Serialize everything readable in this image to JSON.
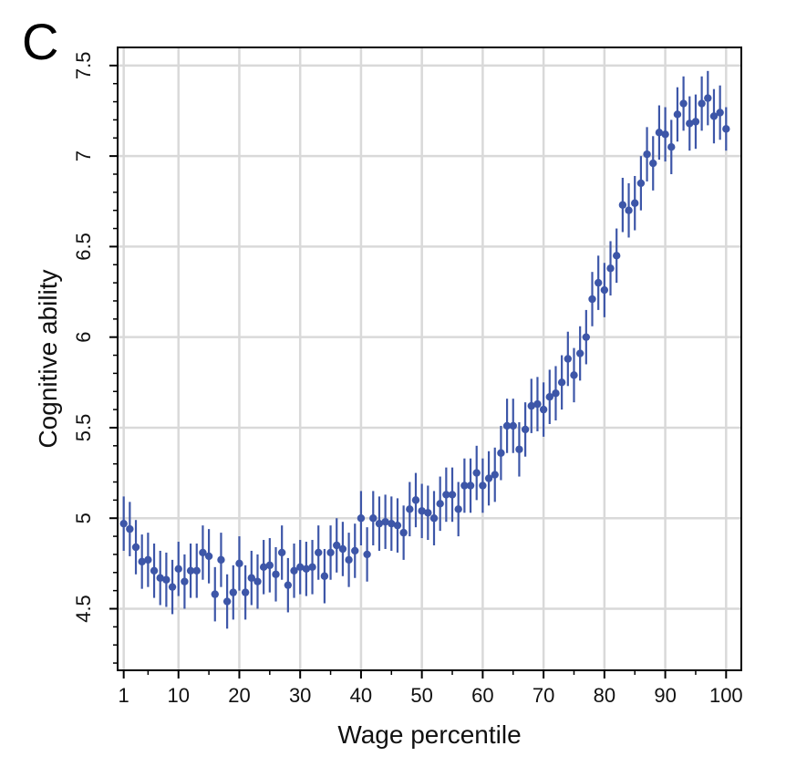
{
  "panel_label": "C",
  "colors": {
    "marker": "#3d56a8",
    "grid": "#d9d9d9",
    "axis": "#000000"
  },
  "chart_data": {
    "type": "scatter",
    "title": "",
    "xlabel": "Wage percentile",
    "ylabel": "Cognitive ability",
    "xlim": [
      0,
      102.5
    ],
    "ylim": [
      4.16,
      7.6
    ],
    "xticks": [
      1,
      10,
      20,
      30,
      40,
      50,
      60,
      70,
      80,
      90,
      100
    ],
    "xtick_labels": [
      "1",
      "10",
      "20",
      "30",
      "40",
      "50",
      "60",
      "70",
      "80",
      "90",
      "100"
    ],
    "yticks": [
      4.5,
      5,
      5.5,
      6,
      6.5,
      7,
      7.5
    ],
    "ytick_labels": [
      "4.5",
      "5",
      "5.5",
      "6",
      "6.5",
      "7",
      "7.5"
    ],
    "grid": true,
    "legend": "none",
    "series": [
      {
        "x": [
          1,
          2,
          3,
          4,
          5,
          6,
          7,
          8,
          9,
          10,
          11,
          12,
          13,
          14,
          15,
          16,
          17,
          18,
          19,
          20,
          21,
          22,
          23,
          24,
          25,
          26,
          27,
          28,
          29,
          30,
          31,
          32,
          33,
          34,
          35,
          36,
          37,
          38,
          39,
          40,
          41,
          42,
          43,
          44,
          45,
          46,
          47,
          48,
          49,
          50,
          51,
          52,
          53,
          54,
          55,
          56,
          57,
          58,
          59,
          60,
          61,
          62,
          63,
          64,
          65,
          66,
          67,
          68,
          69,
          70,
          71,
          72,
          73,
          74,
          75,
          76,
          77,
          78,
          79,
          80,
          81,
          82,
          83,
          84,
          85,
          86,
          87,
          88,
          89,
          90,
          91,
          92,
          93,
          94,
          95,
          96,
          97,
          98,
          99,
          100
        ],
        "y": [
          4.97,
          4.94,
          4.84,
          4.76,
          4.77,
          4.71,
          4.67,
          4.66,
          4.62,
          4.72,
          4.65,
          4.71,
          4.71,
          4.81,
          4.79,
          4.58,
          4.77,
          4.54,
          4.59,
          4.75,
          4.59,
          4.67,
          4.65,
          4.73,
          4.74,
          4.69,
          4.81,
          4.63,
          4.71,
          4.73,
          4.72,
          4.73,
          4.81,
          4.68,
          4.81,
          4.85,
          4.83,
          4.77,
          4.82,
          5.0,
          4.8,
          5.0,
          4.97,
          4.98,
          4.97,
          4.96,
          4.92,
          5.05,
          5.1,
          5.04,
          5.03,
          5.0,
          5.08,
          5.13,
          5.13,
          5.05,
          5.18,
          5.18,
          5.25,
          5.18,
          5.22,
          5.24,
          5.36,
          5.51,
          5.51,
          5.38,
          5.49,
          5.62,
          5.63,
          5.6,
          5.67,
          5.69,
          5.75,
          5.88,
          5.79,
          5.91,
          6.0,
          6.21,
          6.3,
          6.26,
          6.38,
          6.45,
          6.73,
          6.7,
          6.74,
          6.85,
          7.01,
          6.96,
          7.13,
          7.12,
          7.05,
          7.23,
          7.29,
          7.18,
          7.19,
          7.29,
          7.32,
          7.22,
          7.24,
          7.15
        ],
        "err": [
          0.15,
          0.15,
          0.15,
          0.15,
          0.15,
          0.15,
          0.15,
          0.15,
          0.15,
          0.15,
          0.15,
          0.15,
          0.15,
          0.15,
          0.15,
          0.15,
          0.15,
          0.15,
          0.15,
          0.15,
          0.15,
          0.15,
          0.15,
          0.15,
          0.15,
          0.15,
          0.15,
          0.15,
          0.15,
          0.15,
          0.15,
          0.15,
          0.15,
          0.15,
          0.15,
          0.15,
          0.15,
          0.15,
          0.15,
          0.15,
          0.15,
          0.15,
          0.15,
          0.15,
          0.15,
          0.15,
          0.15,
          0.15,
          0.15,
          0.15,
          0.15,
          0.15,
          0.15,
          0.15,
          0.15,
          0.15,
          0.15,
          0.15,
          0.15,
          0.15,
          0.15,
          0.15,
          0.15,
          0.15,
          0.15,
          0.15,
          0.15,
          0.15,
          0.15,
          0.15,
          0.15,
          0.15,
          0.15,
          0.15,
          0.15,
          0.15,
          0.15,
          0.15,
          0.15,
          0.15,
          0.15,
          0.15,
          0.15,
          0.15,
          0.15,
          0.15,
          0.15,
          0.15,
          0.15,
          0.15,
          0.15,
          0.15,
          0.15,
          0.15,
          0.15,
          0.15,
          0.15,
          0.15,
          0.15,
          0.12
        ]
      }
    ]
  }
}
